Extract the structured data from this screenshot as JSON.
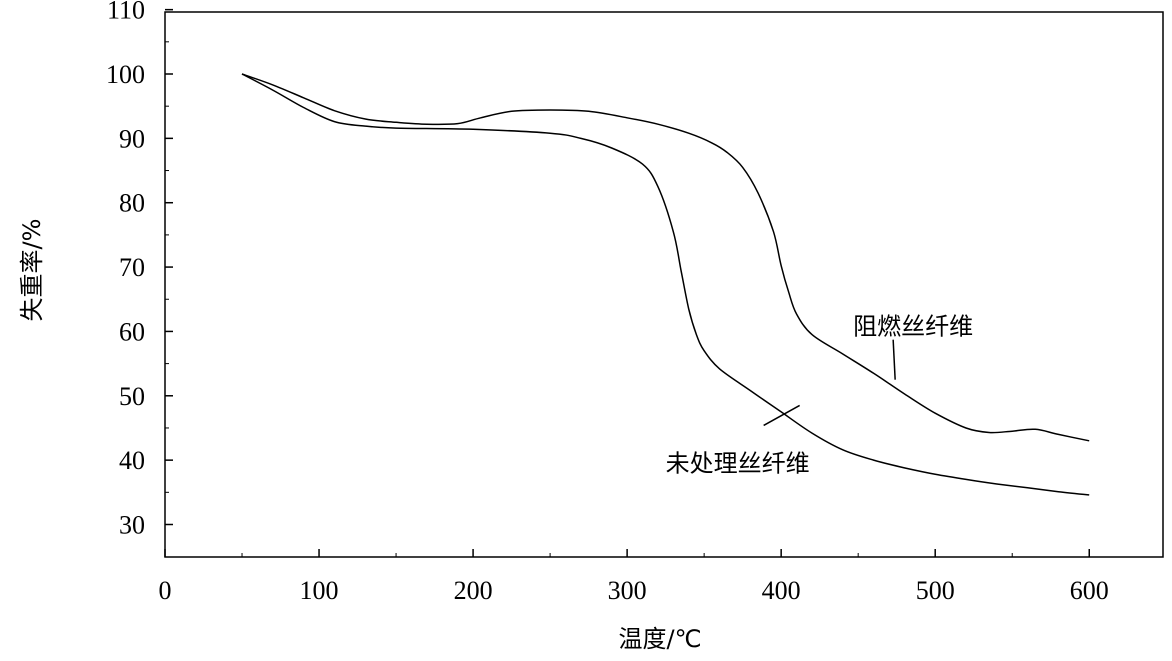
{
  "chart_data": {
    "type": "line",
    "title": "",
    "xlabel": "温度/℃",
    "ylabel": "失重率/%",
    "xlim": [
      0,
      650
    ],
    "ylim": [
      26,
      110
    ],
    "x_ticks": [
      0,
      100,
      200,
      300,
      400,
      500,
      600
    ],
    "y_ticks": [
      30,
      40,
      50,
      60,
      70,
      80,
      90,
      100,
      110
    ],
    "grid": false,
    "legend": "none",
    "series": [
      {
        "name": "阻燃丝纤维",
        "x": [
          50,
          70,
          90,
          110,
          130,
          150,
          170,
          190,
          205,
          225,
          250,
          275,
          300,
          320,
          340,
          355,
          365,
          375,
          385,
          395,
          400,
          405,
          410,
          420,
          440,
          460,
          480,
          500,
          520,
          535,
          550,
          565,
          580,
          600
        ],
        "y": [
          100,
          98.3,
          96.3,
          94.3,
          93.0,
          92.5,
          92.2,
          92.3,
          93.2,
          94.2,
          94.4,
          94.2,
          93.2,
          92.2,
          90.8,
          89.3,
          87.8,
          85.5,
          81.5,
          75.5,
          70.2,
          66.0,
          62.7,
          59.5,
          56.5,
          53.5,
          50.3,
          47.3,
          45.0,
          44.3,
          44.5,
          44.8,
          44.0,
          43.0
        ]
      },
      {
        "name": "未处理丝纤维",
        "x": [
          50,
          70,
          90,
          110,
          130,
          150,
          200,
          250,
          270,
          290,
          310,
          320,
          330,
          335,
          340,
          345,
          350,
          360,
          380,
          400,
          420,
          440,
          460,
          480,
          500,
          520,
          540,
          560,
          580,
          600
        ],
        "y": [
          100,
          97.5,
          94.8,
          92.6,
          91.9,
          91.6,
          91.4,
          90.8,
          90.0,
          88.5,
          86.0,
          82.5,
          75.5,
          69.5,
          63.5,
          59.5,
          57.0,
          54.2,
          50.8,
          47.5,
          44.2,
          41.6,
          40.0,
          38.8,
          37.8,
          37.0,
          36.3,
          35.7,
          35.1,
          34.6
        ]
      }
    ],
    "annotations": [
      {
        "text": "阻燃丝纤维",
        "series": 0,
        "pointer_x": 474,
        "pointer_y": 52.5
      },
      {
        "text": "未处理丝纤维",
        "series": 1,
        "pointer_x": 412,
        "pointer_y": 48.5
      }
    ],
    "colors": {
      "line": "#000000",
      "axis": "#000000",
      "background": "#ffffff"
    }
  }
}
